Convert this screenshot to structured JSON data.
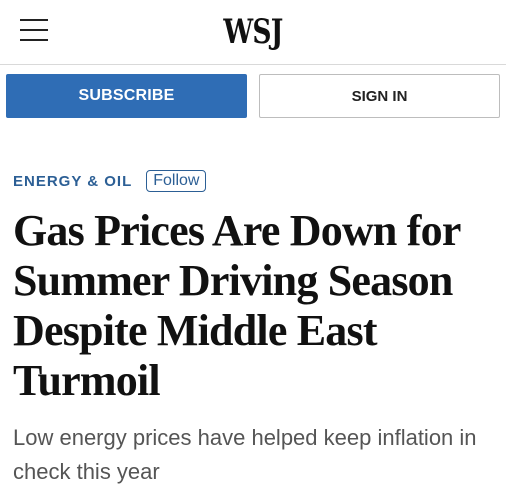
{
  "header": {
    "logo": "WSJ",
    "menu_icon": "hamburger-menu-icon"
  },
  "account": {
    "subscribe_label": "SUBSCRIBE",
    "signin_label": "SIGN IN"
  },
  "article": {
    "section": "ENERGY & OIL",
    "follow_label": "Follow",
    "headline": "Gas Prices Are Down for Summer Driving Season Despite Middle East Turmoil",
    "dek": "Low energy prices have helped keep inflation in check this year"
  },
  "colors": {
    "accent": "#2f6db5",
    "section": "#2c5f95",
    "dek_text": "#555555"
  }
}
